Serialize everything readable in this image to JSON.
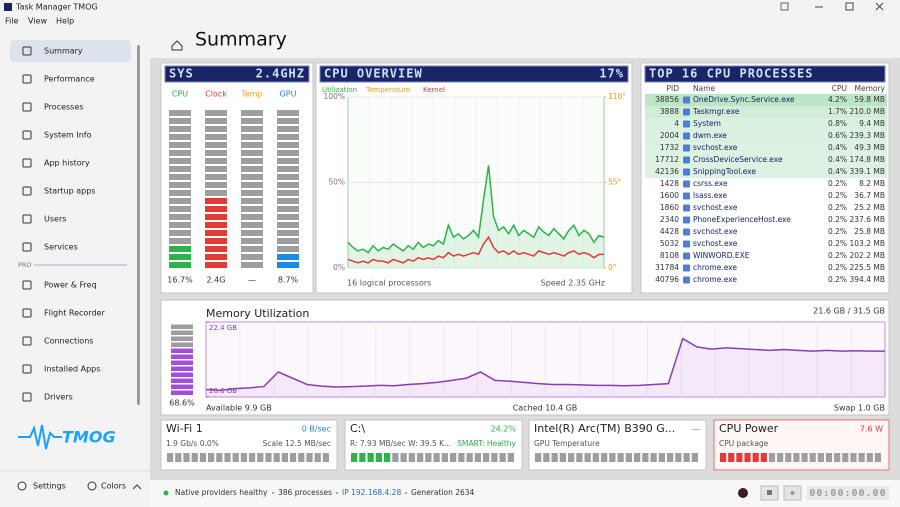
{
  "window": {
    "title": "Task Manager TMOG",
    "menu": [
      "File",
      "View",
      "Help"
    ]
  },
  "sidebar": {
    "items": [
      "Summary",
      "Performance",
      "Processes",
      "System Info",
      "App history",
      "Startup apps",
      "Users",
      "Services"
    ],
    "section": "PRO",
    "pro_items": [
      "Power & Freq",
      "Flight Recorder",
      "Connections",
      "Installed Apps",
      "Drivers"
    ],
    "logo": "TMOG",
    "settings": "Settings",
    "colors": "Colors"
  },
  "header": {
    "title": "Summary"
  },
  "sys": {
    "title": "SYS",
    "freq": "2.4GHZ",
    "meters": [
      {
        "label": "CPU",
        "color": "#2db34a",
        "value_label": "16.7%",
        "level": 16.7
      },
      {
        "label": "Clock",
        "color": "#e53935",
        "value_label": "2.4G",
        "level": 45
      },
      {
        "label": "Temp",
        "color": "#f39c12",
        "value_label": "—",
        "level": 0
      },
      {
        "label": "GPU",
        "color": "#1e88e5",
        "value_label": "8.7%",
        "level": 8.7
      }
    ]
  },
  "cpu_overview": {
    "title": "CPU OVERVIEW",
    "value": "17%",
    "footer_left": "16 logical processors",
    "footer_right": "Speed 2.35 GHz",
    "chart": {
      "type": "line",
      "ylim": [
        0,
        100
      ],
      "yticks": [
        {
          "value": 0,
          "label": "0%"
        },
        {
          "value": 50,
          "label": "50%"
        },
        {
          "value": 100,
          "label": "100%"
        }
      ],
      "y2lim": [
        0,
        110
      ],
      "y2ticks": [
        {
          "value": 0,
          "label": "0°"
        },
        {
          "value": 55,
          "label": "55°"
        },
        {
          "value": 110,
          "label": "110°"
        }
      ],
      "series": [
        {
          "name": "Utilization",
          "color": "#2db34a",
          "values": [
            15,
            12,
            10,
            11,
            9,
            13,
            10,
            12,
            11,
            14,
            12,
            10,
            13,
            11,
            15,
            12,
            14,
            13,
            16,
            14,
            25,
            18,
            20,
            17,
            19,
            22,
            18,
            40,
            60,
            30,
            22,
            24,
            20,
            25,
            19,
            22,
            20,
            18,
            24,
            21,
            19,
            23,
            20,
            17,
            22,
            25,
            19,
            22,
            20,
            15,
            19,
            18
          ]
        },
        {
          "name": "Temperature",
          "color": "#f39c12",
          "axis": "y2"
        },
        {
          "name": "Kernel",
          "color": "#e53935",
          "values": [
            5,
            4,
            3,
            4,
            3,
            5,
            4,
            4,
            3,
            5,
            4,
            3,
            5,
            4,
            6,
            5,
            6,
            5,
            7,
            6,
            9,
            7,
            8,
            7,
            8,
            9,
            8,
            14,
            18,
            12,
            9,
            10,
            8,
            10,
            8,
            9,
            8,
            7,
            10,
            9,
            8,
            9,
            8,
            7,
            9,
            10,
            8,
            9,
            8,
            6,
            8,
            8
          ]
        }
      ]
    }
  },
  "processes": {
    "title": "TOP 16 CPU PROCESSES",
    "columns": [
      "PID",
      "Name",
      "CPU",
      "Memory"
    ],
    "rows": [
      [
        "38856",
        "OneDrive.Sync.Service.exe",
        "4.2%",
        "59.8 MB"
      ],
      [
        "3888",
        "Taskmgr.exe",
        "1.7%",
        "210.0 MB"
      ],
      [
        "4",
        "System",
        "0.8%",
        "9.4 MB"
      ],
      [
        "2004",
        "dwm.exe",
        "0.6%",
        "239.3 MB"
      ],
      [
        "1732",
        "svchost.exe",
        "0.4%",
        "49.3 MB"
      ],
      [
        "17712",
        "CrossDeviceService.exe",
        "0.4%",
        "174.8 MB"
      ],
      [
        "42136",
        "SnippingTool.exe",
        "0.4%",
        "339.1 MB"
      ],
      [
        "1428",
        "csrss.exe",
        "0.2%",
        "8.2 MB"
      ],
      [
        "1600",
        "lsass.exe",
        "0.2%",
        "36.7 MB"
      ],
      [
        "1860",
        "svchost.exe",
        "0.2%",
        "25.2 MB"
      ],
      [
        "2340",
        "PhoneExperienceHost.exe",
        "0.2%",
        "237.6 MB"
      ],
      [
        "4428",
        "svchost.exe",
        "0.2%",
        "25.8 MB"
      ],
      [
        "5032",
        "svchost.exe",
        "0.2%",
        "103.2 MB"
      ],
      [
        "8108",
        "WINWORD.EXE",
        "0.2%",
        "202.2 MB"
      ],
      [
        "31784",
        "chrome.exe",
        "0.2%",
        "225.5 MB"
      ],
      [
        "40796",
        "chrome.exe",
        "0.2%",
        "394.4 MB"
      ]
    ]
  },
  "memory": {
    "title": "Memory Utilization",
    "usage": "21.6 GB / 31.5 GB",
    "percent_label": "68.6%",
    "level": 68.6,
    "available": "Available 9.9 GB",
    "cached": "Cached 10.4 GB",
    "swap": "Swap 1.0 GB",
    "chart": {
      "type": "line",
      "color": "#8e3cb5",
      "ylim": [
        20.6,
        22.4
      ],
      "yticks": [
        {
          "value": 20.6,
          "label": "20.6 GB"
        },
        {
          "value": 22.4,
          "label": "22.4 GB"
        }
      ],
      "values": [
        20.78,
        20.76,
        20.8,
        20.82,
        20.85,
        21.2,
        21.05,
        20.9,
        20.86,
        20.84,
        20.85,
        20.86,
        20.88,
        20.87,
        20.9,
        20.92,
        20.95,
        21.0,
        21.05,
        21.2,
        21.0,
        20.98,
        20.95,
        20.92,
        20.9,
        20.9,
        20.89,
        20.88,
        20.88,
        20.87,
        20.88,
        20.9,
        20.92,
        22.0,
        21.8,
        21.75,
        21.78,
        21.76,
        21.74,
        21.72,
        21.74,
        21.72,
        21.7,
        21.72,
        21.7,
        21.71,
        21.7,
        21.7
      ]
    }
  },
  "cards": [
    {
      "title": "Wi-Fi 1",
      "value": "0 B/sec",
      "value_color": "#1e88e5",
      "detail": "1.9 Gb/s  0.0%",
      "detail_right": "Scale 12.5 MB/sec",
      "level": 0,
      "color": "#2db34a"
    },
    {
      "title": "C:\\",
      "value": "24.2%",
      "value_color": "#2db34a",
      "detail": "R: 7.93 MB/sec  W: 39.5 K...",
      "detail_right": "SMART: Healthy",
      "level": 24.2,
      "color": "#2db34a"
    },
    {
      "title": "Intel(R) Arc(TM) B390 G...",
      "value": "—",
      "value_color": "#1e88e5",
      "detail": "GPU Temperature",
      "level": 0,
      "color": "#1e88e5"
    },
    {
      "title": "CPU Power",
      "value": "7.6 W",
      "value_color": "#e53935",
      "detail": "CPU package",
      "level": 28,
      "color": "#e53935"
    }
  ],
  "status": {
    "items": [
      "Native providers healthy",
      "386 processes",
      "IP 192.168.4.28",
      "Generation 2634"
    ],
    "timer": "00:00:00.00"
  }
}
